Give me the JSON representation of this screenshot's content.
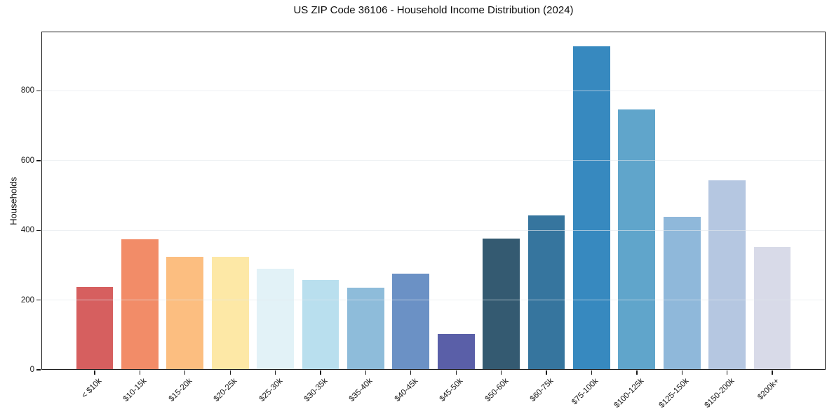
{
  "title": "US ZIP Code 36106 - Household Income Distribution (2024)",
  "chart_data": {
    "type": "bar",
    "title": "US ZIP Code 36106 - Household Income Distribution (2024)",
    "xlabel": "",
    "ylabel": "Households",
    "categories": [
      "< $10k",
      "$10-15k",
      "$15-20k",
      "$20-25k",
      "$25-30k",
      "$30-35k",
      "$35-40k",
      "$40-45k",
      "$45-50k",
      "$50-60k",
      "$60-75k",
      "$75-100k",
      "$100-125k",
      "$125-150k",
      "$150-200k",
      "$200k+"
    ],
    "values": [
      238,
      374,
      325,
      325,
      290,
      258,
      236,
      275,
      102,
      376,
      443,
      928,
      746,
      439,
      543,
      352
    ],
    "bar_colors": [
      "#d65f5f",
      "#f28c68",
      "#fcbe80",
      "#fde8a6",
      "#e2f2f7",
      "#b9dfee",
      "#8ebcda",
      "#6b91c5",
      "#5a5fa8",
      "#345a71",
      "#36759e",
      "#3789bf",
      "#60a5cb",
      "#8fb8da",
      "#b5c7e1",
      "#d8dae8"
    ],
    "yticks": [
      0,
      200,
      400,
      600,
      800
    ],
    "ylim": [
      0,
      970
    ],
    "grid": "horizontal-above-bars",
    "legend": "none",
    "spines": "full-box",
    "background_color": "#ffffff",
    "gridline_color": "#e9ecf0",
    "axis_color": "#1a1a1a"
  }
}
